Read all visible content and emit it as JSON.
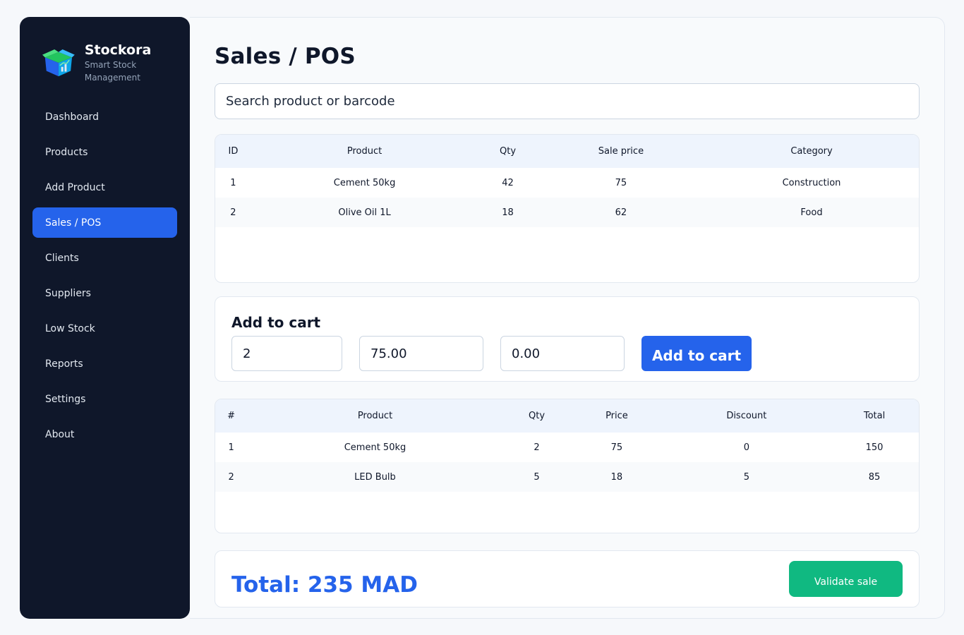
{
  "brand": {
    "name": "Stockora",
    "tagline": "Smart Stock Management",
    "icon": "box-chart-logo"
  },
  "sidebar": {
    "items": [
      {
        "label": "Dashboard",
        "active": false
      },
      {
        "label": "Products",
        "active": false
      },
      {
        "label": "Add Product",
        "active": false
      },
      {
        "label": "Sales / POS",
        "active": true
      },
      {
        "label": "Clients",
        "active": false
      },
      {
        "label": "Suppliers",
        "active": false
      },
      {
        "label": "Low Stock",
        "active": false
      },
      {
        "label": "Reports",
        "active": false
      },
      {
        "label": "Settings",
        "active": false
      },
      {
        "label": "About",
        "active": false
      }
    ]
  },
  "page": {
    "title": "Sales / POS"
  },
  "search": {
    "placeholder": "Search product or barcode"
  },
  "products_table": {
    "columns": [
      "ID",
      "Product",
      "Qty",
      "Sale price",
      "Category"
    ],
    "rows": [
      [
        "1",
        "Cement 50kg",
        "42",
        "75",
        "Construction"
      ],
      [
        "2",
        "Olive Oil 1L",
        "18",
        "62",
        "Food"
      ]
    ]
  },
  "cart_form": {
    "title": "Add to cart",
    "qty_value": "2",
    "price_value": "75.00",
    "discount_value": "0.00",
    "button_label": "Add to cart"
  },
  "cart_table": {
    "columns": [
      "#",
      "Product",
      "Qty",
      "Price",
      "Discount",
      "Total"
    ],
    "rows": [
      [
        "1",
        "Cement 50kg",
        "2",
        "75",
        "0",
        "150"
      ],
      [
        "2",
        "LED Bulb",
        "5",
        "18",
        "5",
        "85"
      ]
    ]
  },
  "summary": {
    "total_text": "Total: 235 MAD",
    "validate_label": "Validate sale"
  },
  "colors": {
    "sidebar_bg": "#0f172a",
    "accent": "#2563eb",
    "success": "#10b981",
    "table_header_bg": "#eef4fd"
  }
}
